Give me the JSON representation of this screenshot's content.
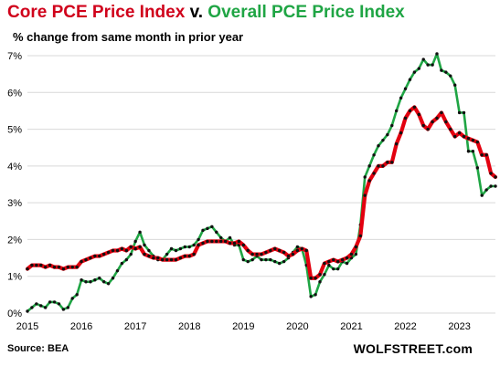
{
  "header": {
    "title_core": "Core PCE Price Index",
    "title_v": " v. ",
    "title_overall": "Overall PCE Price Index",
    "subtitle": "% change from same month in prior year"
  },
  "footer": {
    "source": "Source: BEA",
    "brand": "WOLFSTREET.com"
  },
  "chart_data": {
    "type": "line",
    "title": "Core PCE Price Index v. Overall PCE Price Index",
    "subtitle": "% change from same month in prior year",
    "xlabel": "",
    "ylabel": "",
    "xlim": [
      "2015-01",
      "2023-09"
    ],
    "ylim": [
      0,
      7
    ],
    "y_ticks": [
      "0%",
      "1%",
      "2%",
      "3%",
      "4%",
      "5%",
      "6%",
      "7%"
    ],
    "x_ticks": [
      "2015",
      "2016",
      "2017",
      "2018",
      "2019",
      "2020",
      "2021",
      "2022",
      "2023"
    ],
    "grid": true,
    "colors": {
      "core": "#e3000f",
      "overall": "#1fa544",
      "markers": "#111111"
    },
    "series": [
      {
        "name": "Core PCE Price Index",
        "start": "2015-01",
        "values": [
          1.2,
          1.3,
          1.3,
          1.3,
          1.25,
          1.3,
          1.25,
          1.25,
          1.2,
          1.25,
          1.25,
          1.25,
          1.4,
          1.45,
          1.5,
          1.55,
          1.55,
          1.6,
          1.65,
          1.7,
          1.7,
          1.75,
          1.7,
          1.8,
          1.75,
          1.8,
          1.6,
          1.55,
          1.5,
          1.5,
          1.45,
          1.45,
          1.45,
          1.45,
          1.5,
          1.55,
          1.55,
          1.6,
          1.85,
          1.9,
          1.95,
          1.95,
          1.95,
          1.95,
          1.95,
          1.9,
          1.9,
          1.95,
          1.85,
          1.7,
          1.6,
          1.6,
          1.6,
          1.65,
          1.7,
          1.75,
          1.7,
          1.65,
          1.55,
          1.6,
          1.7,
          1.75,
          1.7,
          0.95,
          0.95,
          1.05,
          1.35,
          1.4,
          1.45,
          1.4,
          1.45,
          1.5,
          1.6,
          1.8,
          2.1,
          3.2,
          3.6,
          3.8,
          4.0,
          4.0,
          4.1,
          4.1,
          4.6,
          4.9,
          5.3,
          5.5,
          5.6,
          5.4,
          5.1,
          5.0,
          5.2,
          5.3,
          5.45,
          5.2,
          5.0,
          4.8,
          4.9,
          4.8,
          4.75,
          4.7,
          4.65,
          4.3,
          4.3,
          3.8,
          3.7
        ]
      },
      {
        "name": "Overall PCE Price Index",
        "start": "2015-01",
        "values": [
          0.05,
          0.15,
          0.25,
          0.2,
          0.15,
          0.3,
          0.3,
          0.25,
          0.1,
          0.15,
          0.4,
          0.5,
          0.9,
          0.85,
          0.85,
          0.9,
          0.95,
          0.85,
          0.8,
          0.95,
          1.15,
          1.35,
          1.45,
          1.6,
          1.95,
          2.2,
          1.85,
          1.7,
          1.55,
          1.45,
          1.45,
          1.6,
          1.75,
          1.7,
          1.75,
          1.8,
          1.8,
          1.85,
          2.0,
          2.25,
          2.3,
          2.35,
          2.2,
          2.05,
          1.95,
          2.05,
          1.85,
          1.85,
          1.45,
          1.4,
          1.45,
          1.55,
          1.45,
          1.45,
          1.45,
          1.4,
          1.35,
          1.4,
          1.5,
          1.65,
          1.8,
          1.75,
          1.3,
          0.45,
          0.5,
          0.85,
          1.05,
          1.3,
          1.2,
          1.2,
          1.4,
          1.35,
          1.5,
          1.6,
          2.4,
          3.7,
          4.0,
          4.3,
          4.55,
          4.7,
          4.85,
          5.1,
          5.5,
          5.85,
          6.1,
          6.35,
          6.55,
          6.65,
          6.9,
          6.75,
          6.75,
          7.05,
          6.6,
          6.55,
          6.45,
          6.2,
          5.45,
          5.45,
          4.4,
          4.4,
          3.95,
          3.2,
          3.35,
          3.45,
          3.45
        ]
      }
    ]
  }
}
